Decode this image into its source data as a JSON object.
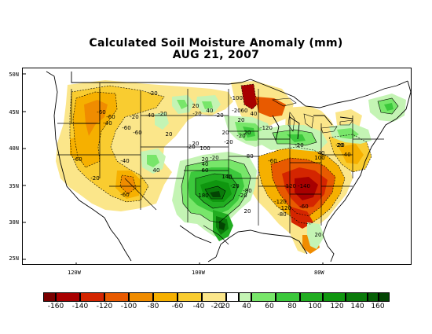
{
  "title": {
    "line1": "Calculated Soil Moisture Anomaly (mm)",
    "line2": "AUG 21, 2007"
  },
  "axes": {
    "lat_labels": [
      "50N",
      "45N",
      "40N",
      "35N",
      "30N",
      "25N"
    ],
    "lon_labels": [
      "120W",
      "100W",
      "80W"
    ]
  },
  "colors": {
    "dry_-160": "#7a0000",
    "dry_-140": "#a80000",
    "dry_-120": "#d42500",
    "dry_-100": "#e85a00",
    "dry_-80": "#f08c00",
    "dry_-60": "#f6b000",
    "dry_-40": "#f9cc30",
    "dry_-20": "#fbe68a",
    "wet_20": "#c4f4b4",
    "wet_40": "#78e66a",
    "wet_60": "#3cc83c",
    "wet_80": "#21ad21",
    "wet_100": "#0f960f",
    "wet_120": "#0a7a0a",
    "wet_140": "#066006",
    "wet_160": "#034403"
  },
  "legend": {
    "labels": [
      "-160",
      "-140",
      "-120",
      "-100",
      "-80",
      "-60",
      "-40",
      "-20",
      "20",
      "40",
      "60",
      "80",
      "100",
      "120",
      "140",
      "160"
    ]
  },
  "contour_labels": [
    "-20",
    "-100",
    "-60",
    "-40",
    "-60",
    "-20",
    "-60",
    "-40",
    "-20",
    "-60",
    "-20",
    "20",
    "40",
    "20",
    "-20",
    "20",
    "-20",
    "60",
    "40",
    "-120",
    "20",
    "-20",
    "20",
    "-20",
    "-20",
    "20",
    "100",
    "-20",
    "20",
    "40",
    "60",
    "-60",
    "-80",
    "-40",
    "40",
    "140",
    "-60",
    "-20",
    "-20",
    "-120",
    "-60",
    "-20",
    "180",
    "-20",
    "-80",
    "20",
    "-120",
    "-60",
    "-20",
    "40",
    "100",
    "-40",
    "20",
    "-120",
    "-140",
    "-80",
    "20"
  ]
}
